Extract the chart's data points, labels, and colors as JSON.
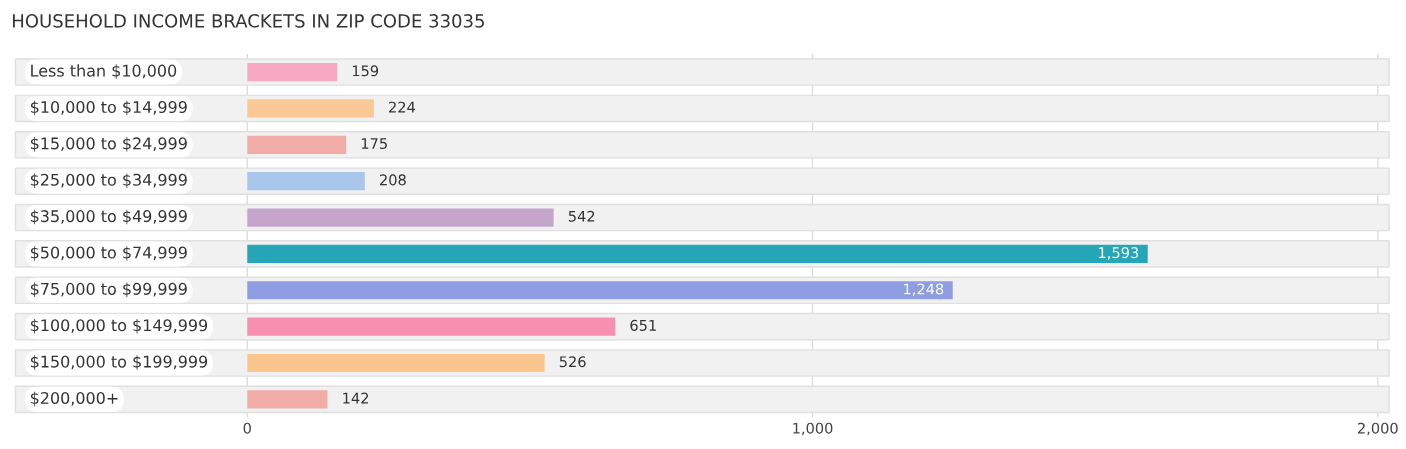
{
  "chart_data": {
    "type": "bar",
    "orientation": "horizontal",
    "title": "HOUSEHOLD INCOME BRACKETS IN ZIP CODE 33035",
    "categories": [
      "Less than $10,000",
      "$10,000 to $14,999",
      "$15,000 to $24,999",
      "$25,000 to $34,999",
      "$35,000 to $49,999",
      "$50,000 to $74,999",
      "$75,000 to $99,999",
      "$100,000 to $149,999",
      "$150,000 to $199,999",
      "$200,000+"
    ],
    "values": [
      159,
      224,
      175,
      208,
      542,
      1593,
      1248,
      651,
      526,
      142
    ],
    "value_labels": [
      "159",
      "224",
      "175",
      "208",
      "542",
      "1,593",
      "1,248",
      "651",
      "526",
      "142"
    ],
    "colors": [
      "#f7a8c2",
      "#fbc995",
      "#f2aca8",
      "#a9c7ea",
      "#c6a5cd",
      "#27a6b7",
      "#8f9de3",
      "#f78fb1",
      "#fbc58e",
      "#f2aca8"
    ],
    "xlim": [
      -420,
      2030
    ],
    "xticks": [
      0,
      {
        "value": 1000,
        "label": "1,000"
      },
      {
        "value": 2000,
        "label": "2,000"
      }
    ],
    "grid": "x",
    "legend": false
  }
}
